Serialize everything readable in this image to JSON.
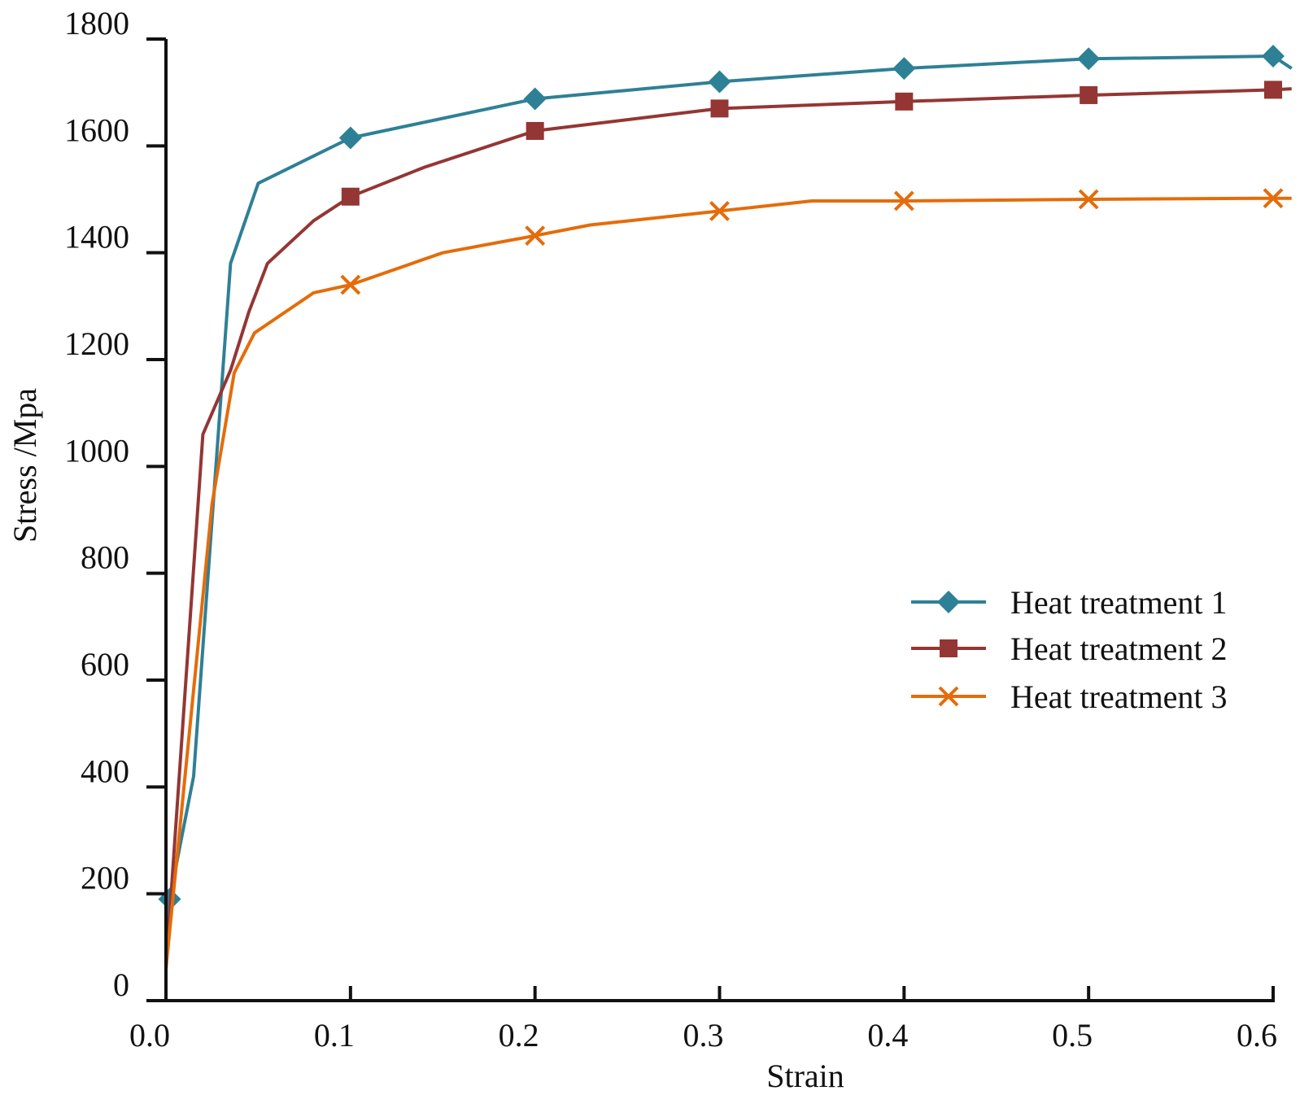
{
  "chart_data": {
    "type": "line",
    "title": "",
    "xlabel": "Strain",
    "ylabel": "Stress /Mpa",
    "xlim": [
      0.0,
      0.6
    ],
    "ylim": [
      0,
      1800
    ],
    "x_ticks": [
      0.0,
      0.1,
      0.2,
      0.3,
      0.4,
      0.5,
      0.6
    ],
    "x_tick_labels": [
      "0.0",
      "0.1",
      "0.2",
      "0.3",
      "0.4",
      "0.5",
      "0.6"
    ],
    "y_ticks": [
      0,
      200,
      400,
      600,
      800,
      1000,
      1200,
      1400,
      1600,
      1800
    ],
    "y_tick_labels": [
      "0",
      "200",
      "400",
      "600",
      "800",
      "1000",
      "1200",
      "1400",
      "1600",
      "1800"
    ],
    "grid": false,
    "legend_position": "right",
    "series": [
      {
        "name": "Heat treatment 1",
        "color": "#2e8096",
        "marker": "diamond",
        "points": [
          [
            0.0,
            60
          ],
          [
            0.002,
            190
          ],
          [
            0.015,
            420
          ],
          [
            0.025,
            900
          ],
          [
            0.035,
            1380
          ],
          [
            0.05,
            1530
          ],
          [
            0.1,
            1615
          ],
          [
            0.2,
            1688
          ],
          [
            0.3,
            1720
          ],
          [
            0.4,
            1745
          ],
          [
            0.5,
            1763
          ],
          [
            0.6,
            1768
          ],
          [
            0.61,
            1745
          ]
        ],
        "marker_x": [
          0.002,
          0.1,
          0.2,
          0.3,
          0.4,
          0.5,
          0.6
        ]
      },
      {
        "name": "Heat treatment 2",
        "color": "#943634",
        "marker": "square",
        "points": [
          [
            0.0,
            60
          ],
          [
            0.02,
            1060
          ],
          [
            0.035,
            1180
          ],
          [
            0.045,
            1290
          ],
          [
            0.055,
            1380
          ],
          [
            0.08,
            1460
          ],
          [
            0.1,
            1505
          ],
          [
            0.14,
            1560
          ],
          [
            0.2,
            1628
          ],
          [
            0.3,
            1670
          ],
          [
            0.4,
            1683
          ],
          [
            0.5,
            1695
          ],
          [
            0.6,
            1705
          ],
          [
            0.61,
            1707
          ]
        ],
        "marker_x": [
          0.1,
          0.2,
          0.3,
          0.4,
          0.5,
          0.6
        ]
      },
      {
        "name": "Heat treatment 3",
        "color": "#e46c0a",
        "marker": "x",
        "points": [
          [
            0.0,
            60
          ],
          [
            0.025,
            930
          ],
          [
            0.037,
            1175
          ],
          [
            0.048,
            1250
          ],
          [
            0.08,
            1325
          ],
          [
            0.1,
            1340
          ],
          [
            0.15,
            1400
          ],
          [
            0.2,
            1432
          ],
          [
            0.23,
            1452
          ],
          [
            0.3,
            1478
          ],
          [
            0.35,
            1497
          ],
          [
            0.4,
            1497
          ],
          [
            0.5,
            1500
          ],
          [
            0.6,
            1502
          ],
          [
            0.61,
            1502
          ]
        ],
        "marker_x": [
          0.1,
          0.2,
          0.3,
          0.4,
          0.5,
          0.6
        ]
      }
    ]
  }
}
